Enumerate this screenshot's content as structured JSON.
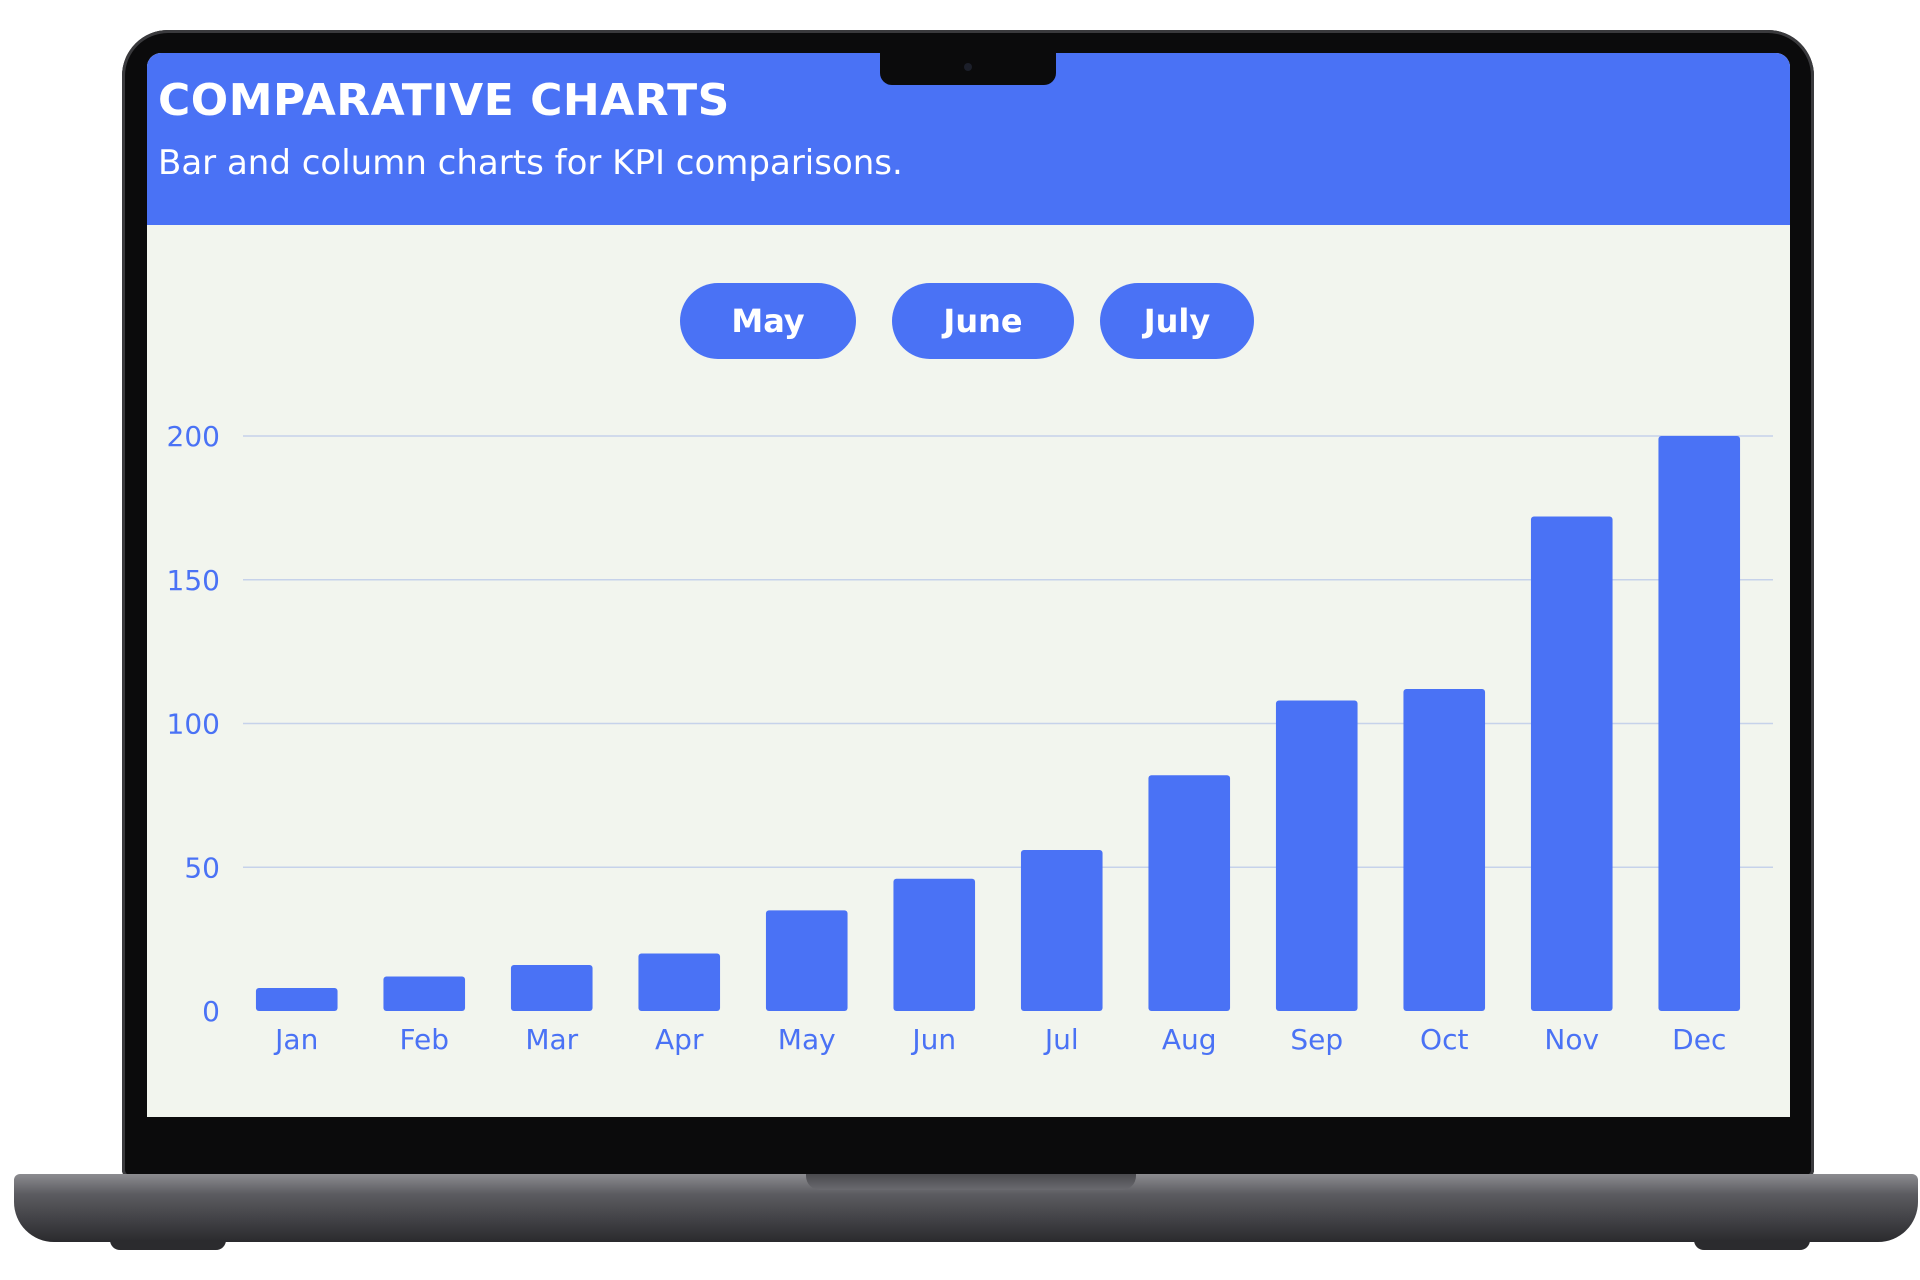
{
  "header": {
    "title": "COMPARATIVE CHARTS",
    "subtitle": "Bar and column charts for KPI comparisons."
  },
  "filters": {
    "buttons": [
      {
        "label": "May"
      },
      {
        "label": "June"
      },
      {
        "label": "July"
      }
    ]
  },
  "colors": {
    "accent": "#4a72f5",
    "background": "#f2f5ee",
    "grid": "#c6d2ea"
  },
  "chart_data": {
    "type": "bar",
    "title": "",
    "xlabel": "",
    "ylabel": "",
    "categories": [
      "Jan",
      "Feb",
      "Mar",
      "Apr",
      "May",
      "Jun",
      "Jul",
      "Aug",
      "Sep",
      "Oct",
      "Nov",
      "Dec"
    ],
    "values": [
      8,
      12,
      16,
      20,
      35,
      46,
      56,
      82,
      108,
      112,
      172,
      200
    ],
    "ylim": [
      0,
      200
    ],
    "yticks": [
      0,
      50,
      100,
      150,
      200
    ],
    "grid": true,
    "legend": "none"
  }
}
